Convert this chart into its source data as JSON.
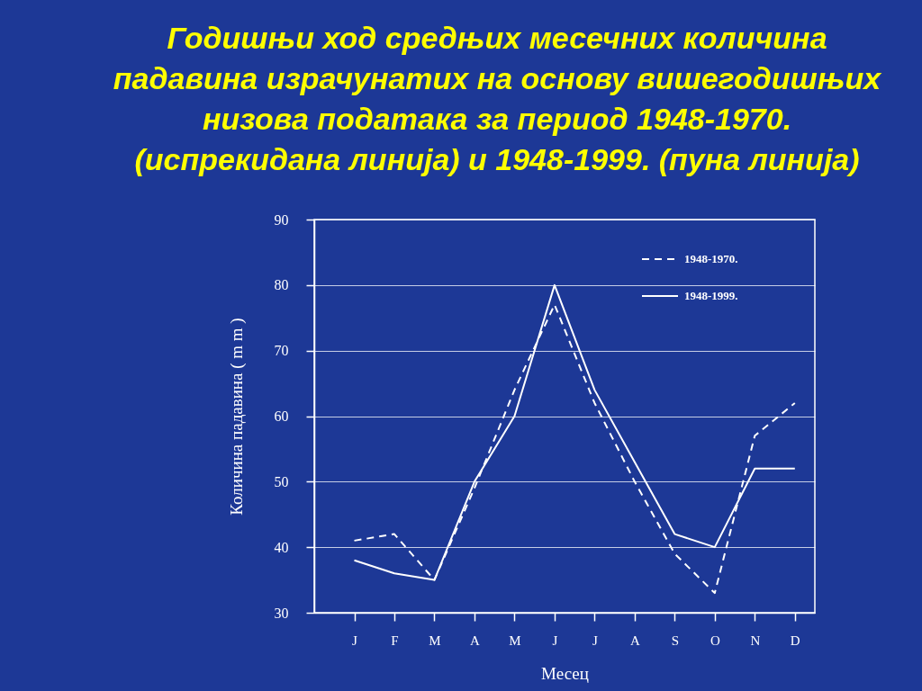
{
  "chart_data": {
    "type": "line",
    "title": "Годишњи ход средњих месечних количина\nпадавина израчунатих на основу вишегодишњих\nнизова података за период 1948-1970.\n(испрекидана линија) и 1948-1999. (пуна линија)",
    "xlabel": "Месец",
    "ylabel": "Количина падавина ( m m )",
    "categories": [
      "J",
      "F",
      "M",
      "A",
      "M",
      "J",
      "J",
      "A",
      "S",
      "O",
      "N",
      "D"
    ],
    "series": [
      {
        "name": "1948-1970.",
        "color": "#ffffff",
        "line_style": "dashed",
        "values": [
          41,
          42,
          35,
          49,
          64,
          77,
          62,
          50,
          39,
          33,
          57,
          62
        ]
      },
      {
        "name": "1948-1999.",
        "color": "#ffffff",
        "line_style": "solid",
        "values": [
          38,
          36,
          35,
          50,
          60,
          80,
          64,
          53,
          42,
          40,
          52,
          52
        ]
      }
    ],
    "ylim": [
      30,
      90
    ],
    "yticks": [
      30,
      40,
      50,
      60,
      70,
      80,
      90
    ],
    "grid": "y",
    "legend": "top right"
  }
}
